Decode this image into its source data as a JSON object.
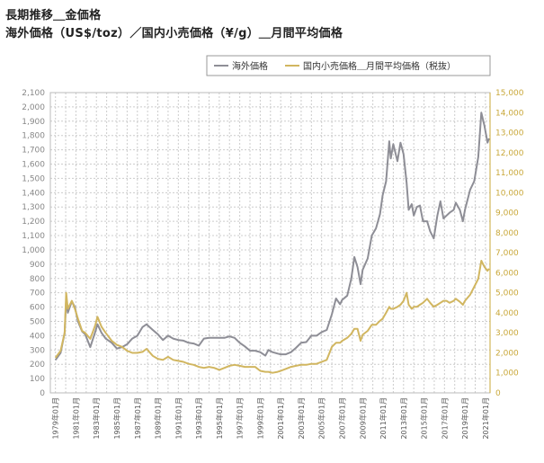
{
  "title_line1": "長期推移＿金価格",
  "title_line2": "海外価格（US$/toz）／国内小売価格（¥/g）＿月間平均価格",
  "colors": {
    "overseas": "#8e8e96",
    "domestic": "#d1b660",
    "grid": "#cccccc",
    "right_axis": "#c9a83a"
  },
  "chart_data": {
    "type": "line",
    "title": "",
    "legend_position": "top-right",
    "grid": true,
    "x_ticks": [
      "1979年01月",
      "1981年01月",
      "1983年01月",
      "1985年01月",
      "1987年01月",
      "1989年01月",
      "1991年01月",
      "1993年01月",
      "1995年01月",
      "1997年01月",
      "1999年01月",
      "2001年01月",
      "2003年01月",
      "2005年01月",
      "2007年01月",
      "2009年01月",
      "2011年01月",
      "2013年01月",
      "2015年01月",
      "2017年01月",
      "2019年01月",
      "2021年01月"
    ],
    "y_left": {
      "min": 0,
      "max": 2100,
      "step": 100
    },
    "y_right": {
      "min": 0,
      "max": 15000,
      "step": 1000
    },
    "series": [
      {
        "name": "海外価格",
        "axis": "left",
        "points": [
          [
            1979.0,
            230
          ],
          [
            1979.5,
            280
          ],
          [
            1979.9,
            420
          ],
          [
            1980.05,
            650
          ],
          [
            1980.2,
            560
          ],
          [
            1980.6,
            640
          ],
          [
            1980.9,
            600
          ],
          [
            1981.2,
            500
          ],
          [
            1981.6,
            430
          ],
          [
            1981.9,
            410
          ],
          [
            1982.4,
            320
          ],
          [
            1982.9,
            430
          ],
          [
            1983.1,
            480
          ],
          [
            1983.5,
            420
          ],
          [
            1983.9,
            380
          ],
          [
            1984.5,
            350
          ],
          [
            1985.0,
            310
          ],
          [
            1985.5,
            320
          ],
          [
            1986.0,
            340
          ],
          [
            1986.5,
            380
          ],
          [
            1987.0,
            400
          ],
          [
            1987.5,
            460
          ],
          [
            1987.9,
            480
          ],
          [
            1988.5,
            440
          ],
          [
            1989.0,
            410
          ],
          [
            1989.5,
            370
          ],
          [
            1990.0,
            400
          ],
          [
            1990.5,
            380
          ],
          [
            1991.0,
            370
          ],
          [
            1991.5,
            365
          ],
          [
            1992.0,
            350
          ],
          [
            1992.5,
            345
          ],
          [
            1993.0,
            330
          ],
          [
            1993.5,
            380
          ],
          [
            1994.0,
            385
          ],
          [
            1994.5,
            385
          ],
          [
            1995.0,
            385
          ],
          [
            1995.5,
            385
          ],
          [
            1996.0,
            395
          ],
          [
            1996.5,
            385
          ],
          [
            1997.0,
            350
          ],
          [
            1997.5,
            325
          ],
          [
            1998.0,
            295
          ],
          [
            1998.5,
            295
          ],
          [
            1999.0,
            285
          ],
          [
            1999.5,
            260
          ],
          [
            1999.8,
            300
          ],
          [
            2000.2,
            285
          ],
          [
            2000.7,
            275
          ],
          [
            2001.0,
            270
          ],
          [
            2001.5,
            270
          ],
          [
            2002.0,
            285
          ],
          [
            2002.5,
            315
          ],
          [
            2003.0,
            350
          ],
          [
            2003.5,
            355
          ],
          [
            2004.0,
            400
          ],
          [
            2004.5,
            400
          ],
          [
            2005.0,
            425
          ],
          [
            2005.5,
            440
          ],
          [
            2006.0,
            550
          ],
          [
            2006.4,
            660
          ],
          [
            2006.8,
            620
          ],
          [
            2007.0,
            650
          ],
          [
            2007.5,
            680
          ],
          [
            2007.9,
            800
          ],
          [
            2008.2,
            950
          ],
          [
            2008.5,
            880
          ],
          [
            2008.8,
            760
          ],
          [
            2009.0,
            860
          ],
          [
            2009.5,
            940
          ],
          [
            2009.9,
            1100
          ],
          [
            2010.3,
            1150
          ],
          [
            2010.7,
            1250
          ],
          [
            2010.95,
            1380
          ],
          [
            2011.3,
            1480
          ],
          [
            2011.6,
            1760
          ],
          [
            2011.75,
            1640
          ],
          [
            2012.0,
            1740
          ],
          [
            2012.4,
            1620
          ],
          [
            2012.7,
            1750
          ],
          [
            2013.0,
            1670
          ],
          [
            2013.3,
            1470
          ],
          [
            2013.5,
            1280
          ],
          [
            2013.8,
            1320
          ],
          [
            2014.0,
            1240
          ],
          [
            2014.3,
            1300
          ],
          [
            2014.6,
            1310
          ],
          [
            2014.9,
            1200
          ],
          [
            2015.3,
            1200
          ],
          [
            2015.6,
            1130
          ],
          [
            2015.95,
            1080
          ],
          [
            2016.3,
            1240
          ],
          [
            2016.6,
            1340
          ],
          [
            2016.9,
            1220
          ],
          [
            2017.2,
            1240
          ],
          [
            2017.5,
            1260
          ],
          [
            2017.9,
            1280
          ],
          [
            2018.1,
            1330
          ],
          [
            2018.5,
            1280
          ],
          [
            2018.8,
            1200
          ],
          [
            2019.0,
            1280
          ],
          [
            2019.5,
            1420
          ],
          [
            2019.9,
            1480
          ],
          [
            2020.3,
            1650
          ],
          [
            2020.6,
            1960
          ],
          [
            2020.9,
            1870
          ],
          [
            2021.2,
            1750
          ],
          [
            2021.35,
            1780
          ]
        ]
      },
      {
        "name": "国内小売価格＿月間平均価格（税抜）",
        "axis": "right",
        "points": [
          [
            1979.0,
            1750
          ],
          [
            1979.5,
            2100
          ],
          [
            1979.9,
            3000
          ],
          [
            1980.05,
            5000
          ],
          [
            1980.2,
            4200
          ],
          [
            1980.6,
            4600
          ],
          [
            1980.9,
            4200
          ],
          [
            1981.2,
            3700
          ],
          [
            1981.6,
            3100
          ],
          [
            1981.9,
            3000
          ],
          [
            1982.4,
            2700
          ],
          [
            1982.9,
            3400
          ],
          [
            1983.1,
            3800
          ],
          [
            1983.5,
            3300
          ],
          [
            1983.9,
            3000
          ],
          [
            1984.5,
            2600
          ],
          [
            1985.0,
            2400
          ],
          [
            1985.5,
            2300
          ],
          [
            1986.0,
            2100
          ],
          [
            1986.5,
            2000
          ],
          [
            1987.0,
            2000
          ],
          [
            1987.5,
            2050
          ],
          [
            1987.9,
            2200
          ],
          [
            1988.5,
            1850
          ],
          [
            1989.0,
            1700
          ],
          [
            1989.5,
            1650
          ],
          [
            1990.0,
            1800
          ],
          [
            1990.5,
            1650
          ],
          [
            1991.0,
            1600
          ],
          [
            1991.5,
            1550
          ],
          [
            1992.0,
            1450
          ],
          [
            1992.5,
            1400
          ],
          [
            1993.0,
            1300
          ],
          [
            1993.5,
            1250
          ],
          [
            1994.0,
            1300
          ],
          [
            1994.5,
            1250
          ],
          [
            1995.0,
            1150
          ],
          [
            1995.5,
            1250
          ],
          [
            1996.0,
            1350
          ],
          [
            1996.5,
            1400
          ],
          [
            1997.0,
            1350
          ],
          [
            1997.5,
            1300
          ],
          [
            1998.0,
            1300
          ],
          [
            1998.5,
            1300
          ],
          [
            1999.0,
            1100
          ],
          [
            1999.5,
            1050
          ],
          [
            1999.8,
            1050
          ],
          [
            2000.2,
            1000
          ],
          [
            2000.7,
            1050
          ],
          [
            2001.0,
            1100
          ],
          [
            2001.5,
            1200
          ],
          [
            2002.0,
            1300
          ],
          [
            2002.5,
            1350
          ],
          [
            2003.0,
            1400
          ],
          [
            2003.5,
            1400
          ],
          [
            2004.0,
            1450
          ],
          [
            2004.5,
            1450
          ],
          [
            2005.0,
            1550
          ],
          [
            2005.5,
            1650
          ],
          [
            2006.0,
            2300
          ],
          [
            2006.4,
            2500
          ],
          [
            2006.8,
            2500
          ],
          [
            2007.0,
            2600
          ],
          [
            2007.5,
            2750
          ],
          [
            2007.9,
            2950
          ],
          [
            2008.2,
            3200
          ],
          [
            2008.5,
            3200
          ],
          [
            2008.8,
            2600
          ],
          [
            2009.0,
            2900
          ],
          [
            2009.5,
            3100
          ],
          [
            2009.9,
            3400
          ],
          [
            2010.3,
            3400
          ],
          [
            2010.7,
            3600
          ],
          [
            2010.95,
            3700
          ],
          [
            2011.3,
            4000
          ],
          [
            2011.6,
            4300
          ],
          [
            2011.75,
            4200
          ],
          [
            2012.0,
            4200
          ],
          [
            2012.4,
            4300
          ],
          [
            2012.7,
            4400
          ],
          [
            2013.0,
            4600
          ],
          [
            2013.3,
            5000
          ],
          [
            2013.5,
            4400
          ],
          [
            2013.8,
            4200
          ],
          [
            2014.0,
            4300
          ],
          [
            2014.3,
            4300
          ],
          [
            2014.6,
            4400
          ],
          [
            2014.9,
            4500
          ],
          [
            2015.3,
            4700
          ],
          [
            2015.6,
            4500
          ],
          [
            2015.95,
            4300
          ],
          [
            2016.3,
            4400
          ],
          [
            2016.6,
            4500
          ],
          [
            2016.9,
            4600
          ],
          [
            2017.2,
            4600
          ],
          [
            2017.5,
            4500
          ],
          [
            2017.9,
            4600
          ],
          [
            2018.1,
            4700
          ],
          [
            2018.5,
            4550
          ],
          [
            2018.8,
            4400
          ],
          [
            2019.0,
            4600
          ],
          [
            2019.5,
            4900
          ],
          [
            2019.9,
            5300
          ],
          [
            2020.3,
            5700
          ],
          [
            2020.6,
            6600
          ],
          [
            2020.9,
            6300
          ],
          [
            2021.2,
            6100
          ],
          [
            2021.35,
            6200
          ]
        ]
      }
    ]
  }
}
